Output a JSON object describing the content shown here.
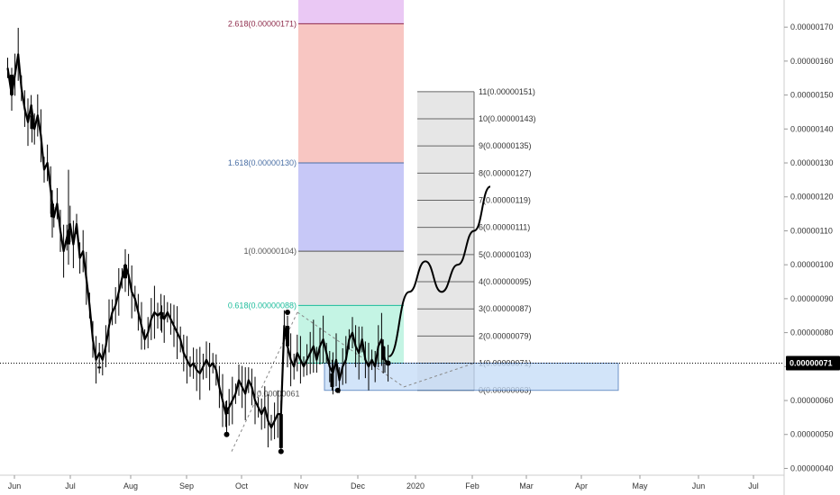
{
  "chart_data": {
    "type": "candlestick",
    "y_axis": {
      "ylim": [
        3.8e-07,
        1.78e-06
      ],
      "ticks": [
        "0.00000040",
        "0.00000050",
        "0.00000060",
        "0.00000070",
        "0.00000080",
        "0.00000090",
        "0.00000100",
        "0.00000110",
        "0.00000120",
        "0.00000130",
        "0.00000140",
        "0.00000150",
        "0.00000160",
        "0.00000170"
      ],
      "position": "right"
    },
    "x_axis": {
      "ticks": [
        "Jun",
        "Jul",
        "Aug",
        "Sep",
        "Oct",
        "Nov",
        "Dec",
        "2020",
        "Feb",
        "Mar",
        "Apr",
        "May",
        "Jun",
        "Jul"
      ],
      "x_range": [
        0,
        100
      ]
    },
    "current_price": {
      "value": 7.1e-07,
      "label": "0.00000071",
      "color": "#000000"
    },
    "price_path": [
      [
        0.5,
        1.58
      ],
      [
        1,
        1.5
      ],
      [
        1.4,
        1.56
      ],
      [
        1.8,
        1.62
      ],
      [
        2.2,
        1.52
      ],
      [
        2.6,
        1.46
      ],
      [
        3.0,
        1.42
      ],
      [
        3.4,
        1.47
      ],
      [
        3.8,
        1.4
      ],
      [
        4.2,
        1.44
      ],
      [
        4.6,
        1.38
      ],
      [
        5.0,
        1.28
      ],
      [
        5.4,
        1.3
      ],
      [
        5.8,
        1.22
      ],
      [
        6.2,
        1.14
      ],
      [
        6.6,
        1.18
      ],
      [
        7.0,
        1.1
      ],
      [
        7.4,
        1.04
      ],
      [
        7.8,
        1.08
      ],
      [
        8.2,
        1.12
      ],
      [
        8.6,
        1.06
      ],
      [
        9.0,
        1.12
      ],
      [
        9.4,
        1.02
      ],
      [
        9.8,
        1.04
      ],
      [
        10.2,
        0.96
      ],
      [
        10.6,
        0.88
      ],
      [
        11.0,
        0.78
      ],
      [
        11.4,
        0.72
      ],
      [
        11.8,
        0.74
      ],
      [
        12.2,
        0.72
      ],
      [
        12.6,
        0.76
      ],
      [
        13.0,
        0.82
      ],
      [
        13.4,
        0.86
      ],
      [
        13.8,
        0.88
      ],
      [
        14.2,
        0.92
      ],
      [
        14.6,
        0.96
      ],
      [
        15.0,
        1.0
      ],
      [
        15.4,
        0.97
      ],
      [
        15.8,
        0.92
      ],
      [
        16.2,
        0.9
      ],
      [
        16.6,
        0.86
      ],
      [
        17.0,
        0.82
      ],
      [
        17.4,
        0.78
      ],
      [
        17.8,
        0.8
      ],
      [
        18.2,
        0.84
      ],
      [
        18.6,
        0.86
      ],
      [
        19.0,
        0.85
      ],
      [
        19.4,
        0.86
      ],
      [
        19.8,
        0.84
      ],
      [
        20.2,
        0.86
      ],
      [
        20.6,
        0.84
      ],
      [
        21.0,
        0.82
      ],
      [
        21.4,
        0.8
      ],
      [
        21.8,
        0.78
      ],
      [
        22.2,
        0.74
      ],
      [
        22.6,
        0.72
      ],
      [
        23.0,
        0.7
      ],
      [
        23.4,
        0.71
      ],
      [
        23.8,
        0.69
      ],
      [
        24.2,
        0.68
      ],
      [
        24.6,
        0.7
      ],
      [
        25.0,
        0.72
      ],
      [
        25.4,
        0.7
      ],
      [
        25.8,
        0.71
      ],
      [
        26.2,
        0.69
      ],
      [
        26.6,
        0.64
      ],
      [
        27.0,
        0.6
      ],
      [
        27.4,
        0.56
      ],
      [
        27.8,
        0.58
      ],
      [
        28.2,
        0.6
      ],
      [
        28.6,
        0.62
      ],
      [
        29.0,
        0.66
      ],
      [
        29.4,
        0.64
      ],
      [
        29.8,
        0.62
      ],
      [
        30.2,
        0.66
      ],
      [
        30.6,
        0.64
      ],
      [
        31.0,
        0.6
      ],
      [
        31.4,
        0.58
      ],
      [
        31.8,
        0.56
      ],
      [
        32.2,
        0.58
      ],
      [
        32.6,
        0.54
      ],
      [
        33.0,
        0.52
      ],
      [
        33.4,
        0.54
      ],
      [
        33.8,
        0.56
      ],
      [
        34.2,
        0.56
      ],
      [
        34.6,
        0.82
      ],
      [
        35.0,
        0.76
      ],
      [
        35.4,
        0.72
      ],
      [
        35.8,
        0.7
      ],
      [
        36.2,
        0.74
      ],
      [
        36.6,
        0.72
      ],
      [
        37.0,
        0.7
      ],
      [
        37.4,
        0.72
      ],
      [
        37.8,
        0.74
      ],
      [
        38.2,
        0.76
      ],
      [
        38.6,
        0.72
      ],
      [
        39.0,
        0.76
      ],
      [
        39.4,
        0.78
      ],
      [
        39.8,
        0.74
      ],
      [
        40.2,
        0.7
      ],
      [
        40.6,
        0.68
      ],
      [
        41.0,
        0.72
      ],
      [
        41.4,
        0.66
      ],
      [
        41.8,
        0.7
      ],
      [
        42.2,
        0.72
      ],
      [
        42.6,
        0.78
      ],
      [
        43.0,
        0.8
      ],
      [
        43.4,
        0.76
      ],
      [
        43.8,
        0.74
      ],
      [
        44.2,
        0.78
      ],
      [
        44.6,
        0.72
      ],
      [
        45.0,
        0.7
      ],
      [
        45.4,
        0.72
      ],
      [
        45.8,
        0.7
      ],
      [
        46.2,
        0.76
      ],
      [
        46.6,
        0.78
      ],
      [
        47.0,
        0.72
      ],
      [
        47.4,
        0.71
      ]
    ],
    "candles": [
      [
        1.0,
        1.5,
        1.56,
        1.58,
        1.46
      ],
      [
        3.5,
        1.44,
        1.4,
        1.47,
        1.36
      ],
      [
        6.0,
        1.18,
        1.14,
        1.22,
        1.08
      ],
      [
        8.0,
        1.06,
        1.1,
        1.28,
        1.0
      ],
      [
        11.8,
        0.7,
        0.7,
        0.72,
        0.68
      ],
      [
        15.0,
        0.96,
        1.0,
        1.04,
        0.92
      ],
      [
        19.5,
        0.84,
        0.86,
        0.88,
        0.8
      ],
      [
        27.5,
        0.58,
        0.56,
        0.6,
        0.5
      ],
      [
        34.2,
        0.46,
        0.56,
        0.6,
        0.45
      ],
      [
        35.0,
        0.82,
        0.76,
        0.85,
        0.72
      ],
      [
        40.5,
        0.68,
        0.64,
        0.72,
        0.63
      ],
      [
        46.8,
        0.76,
        0.72,
        0.78,
        0.68
      ]
    ],
    "fib_extension": {
      "color_levels": [
        {
          "label": "2.618(0.00000171)",
          "value": 1.71,
          "color": "#8e2b4b",
          "fill": "#f4a7a2"
        },
        {
          "label": "1.618(0.00000130)",
          "value": 1.3,
          "color": "#4a6fa5",
          "fill": "#a9abf2"
        },
        {
          "label": "1(0.00000104)",
          "value": 1.04,
          "color": "#555555",
          "fill": "#d0d0d0"
        },
        {
          "label": "0.618(0.00000088)",
          "value": 0.88,
          "color": "#1bbc9b",
          "fill": "#a5eed6"
        }
      ],
      "top_fill": "#e3b5f0"
    },
    "fib_grid": {
      "labels": [
        "11(0.00000151)",
        "10(0.00000143)",
        "9(0.00000135)",
        "8(0.00000127)",
        "7(0.00000119)",
        "6(0.00000111)",
        "5(0.00000103)",
        "4(0.00000095)",
        "3(0.00000087)",
        "2(0.00000079)",
        "1(0.00000071)",
        "0(0.00000063)"
      ],
      "values": [
        1.51,
        1.43,
        1.35,
        1.27,
        1.19,
        1.11,
        1.03,
        0.95,
        0.87,
        0.79,
        0.71,
        0.63
      ],
      "fill": "#d8d8d8"
    },
    "ghost_label": "0.00000061",
    "projection": {
      "path": [
        [
          47.5,
          0.73
        ],
        [
          50.0,
          0.92
        ],
        [
          52.0,
          1.01
        ],
        [
          54.0,
          0.92
        ],
        [
          56.0,
          1.0
        ],
        [
          58.0,
          1.1
        ],
        [
          60.0,
          1.23
        ]
      ]
    },
    "target_box": {
      "y_from": 0.63,
      "y_to": 0.71,
      "fill": "#c4dbf7",
      "stroke": "#3b6eb5"
    }
  }
}
